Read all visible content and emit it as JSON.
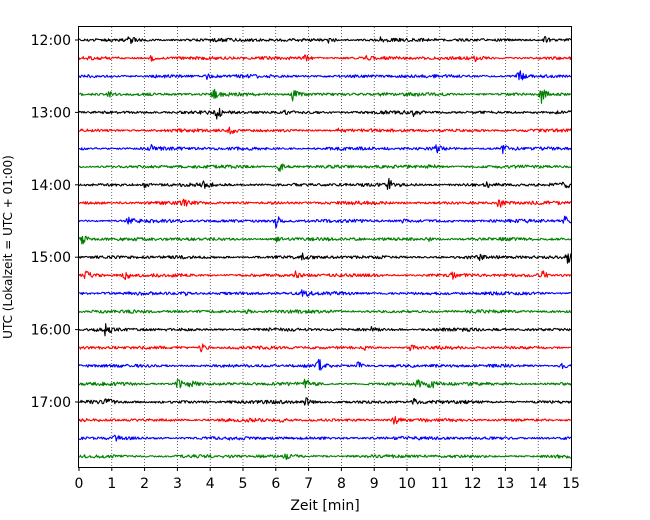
{
  "chart_data": {
    "type": "line",
    "title": "",
    "xlabel": "Zeit  [min]",
    "ylabel": "UTC (Lokalzeit = UTC + 01:00)",
    "xlim": [
      0,
      15
    ],
    "x_ticks": [
      "0",
      "1",
      "2",
      "3",
      "4",
      "5",
      "6",
      "7",
      "8",
      "9",
      "10",
      "11",
      "12",
      "13",
      "14",
      "15"
    ],
    "y_ticks": [
      "12:00",
      "13:00",
      "14:00",
      "15:00",
      "16:00",
      "17:00"
    ],
    "grid": "vertical dotted lines at each minute",
    "trace_interval_minutes": 15,
    "trace_start": "12:00",
    "trace_count": 24,
    "colors": [
      "#000000",
      "#ff0000",
      "#0000ff",
      "#008000"
    ],
    "traces": [
      {
        "start": "12:00",
        "color": "#000000",
        "events": [
          [
            1.5,
            2.2
          ],
          [
            7.6,
            1.6
          ],
          [
            9.2,
            1.4
          ],
          [
            14.2,
            1.6
          ]
        ]
      },
      {
        "start": "12:15",
        "color": "#ff0000",
        "events": [
          [
            2.2,
            1.3
          ],
          [
            6.9,
            1.4
          ],
          [
            8.7,
            1.2
          ],
          [
            12.1,
            1.3
          ]
        ]
      },
      {
        "start": "12:30",
        "color": "#0000ff",
        "events": [
          [
            2.4,
            1.1
          ],
          [
            13.4,
            3.2
          ],
          [
            3.9,
            1.0
          ]
        ]
      },
      {
        "start": "12:45",
        "color": "#008000",
        "events": [
          [
            0.9,
            1.3
          ],
          [
            4.1,
            2.1
          ],
          [
            6.5,
            4.2
          ],
          [
            9.2,
            1.2
          ],
          [
            14.1,
            4.5
          ]
        ]
      },
      {
        "start": "13:00",
        "color": "#000000",
        "events": [
          [
            4.2,
            2.6
          ],
          [
            6.3,
            1.2
          ],
          [
            10.2,
            1.3
          ]
        ]
      },
      {
        "start": "13:15",
        "color": "#ff0000",
        "events": [
          [
            4.6,
            1.8
          ],
          [
            7.9,
            1.0
          ]
        ]
      },
      {
        "start": "13:30",
        "color": "#0000ff",
        "events": [
          [
            2.2,
            1.4
          ],
          [
            10.9,
            1.7
          ],
          [
            12.9,
            2.1
          ]
        ]
      },
      {
        "start": "13:45",
        "color": "#008000",
        "events": [
          [
            6.1,
            2.4
          ],
          [
            10.7,
            2.1
          ]
        ]
      },
      {
        "start": "14:00",
        "color": "#000000",
        "events": [
          [
            2.0,
            1.4
          ],
          [
            3.8,
            1.3
          ],
          [
            9.4,
            3.4
          ],
          [
            12.4,
            1.2
          ],
          [
            14.8,
            1.6
          ]
        ]
      },
      {
        "start": "14:15",
        "color": "#ff0000",
        "events": [
          [
            3.2,
            1.2
          ],
          [
            12.8,
            2.4
          ]
        ]
      },
      {
        "start": "14:30",
        "color": "#0000ff",
        "events": [
          [
            1.5,
            1.6
          ],
          [
            6.0,
            3.8
          ],
          [
            9.9,
            1.2
          ],
          [
            14.8,
            2.5
          ]
        ]
      },
      {
        "start": "14:45",
        "color": "#008000",
        "events": [
          [
            0.1,
            3.2
          ],
          [
            6.0,
            1.3
          ],
          [
            10.6,
            1.2
          ]
        ]
      },
      {
        "start": "15:00",
        "color": "#000000",
        "events": [
          [
            6.8,
            1.3
          ],
          [
            12.2,
            1.2
          ],
          [
            14.9,
            2.6
          ]
        ]
      },
      {
        "start": "15:15",
        "color": "#ff0000",
        "events": [
          [
            0.2,
            2.9
          ],
          [
            1.4,
            2.0
          ],
          [
            6.6,
            1.8
          ],
          [
            11.4,
            1.4
          ],
          [
            14.1,
            2.1
          ]
        ]
      },
      {
        "start": "15:30",
        "color": "#0000ff",
        "events": [
          [
            6.8,
            2.1
          ],
          [
            3.2,
            1.0
          ]
        ]
      },
      {
        "start": "15:45",
        "color": "#008000",
        "events": [
          [
            5.1,
            1.0
          ]
        ]
      },
      {
        "start": "16:00",
        "color": "#000000",
        "events": [
          [
            0.8,
            2.5
          ],
          [
            8.9,
            1.0
          ]
        ]
      },
      {
        "start": "16:15",
        "color": "#ff0000",
        "events": [
          [
            3.7,
            2.8
          ],
          [
            8.7,
            1.5
          ],
          [
            10.1,
            1.2
          ]
        ]
      },
      {
        "start": "16:30",
        "color": "#0000ff",
        "events": [
          [
            7.3,
            3.1
          ],
          [
            8.5,
            2.1
          ],
          [
            14.7,
            1.6
          ]
        ]
      },
      {
        "start": "16:45",
        "color": "#008000",
        "events": [
          [
            3.0,
            2.7
          ],
          [
            3.4,
            1.9
          ],
          [
            6.9,
            2.4
          ],
          [
            10.3,
            2.0
          ],
          [
            10.7,
            3.1
          ]
        ]
      },
      {
        "start": "17:00",
        "color": "#000000",
        "events": [
          [
            0.8,
            2.4
          ],
          [
            6.9,
            2.1
          ],
          [
            10.2,
            1.4
          ]
        ]
      },
      {
        "start": "17:15",
        "color": "#ff0000",
        "events": [
          [
            6.1,
            1.5
          ],
          [
            9.6,
            2.6
          ]
        ]
      },
      {
        "start": "17:30",
        "color": "#0000ff",
        "events": [
          [
            1.1,
            1.0
          ]
        ]
      },
      {
        "start": "17:45",
        "color": "#008000",
        "events": [
          [
            6.3,
            1.0
          ]
        ]
      }
    ]
  }
}
